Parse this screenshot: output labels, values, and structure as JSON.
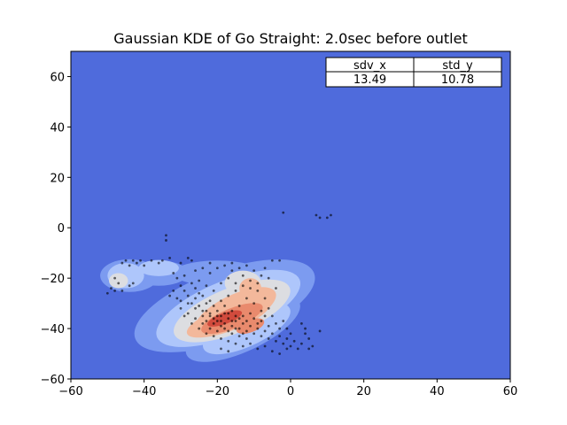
{
  "chart_data": {
    "type": "heatmap",
    "title": "Gaussian KDE of Go Straight: 2.0sec before outlet",
    "xlabel": "",
    "ylabel": "",
    "xlim": [
      -60,
      60
    ],
    "ylim": [
      -60,
      70
    ],
    "x_ticks": [
      -60,
      -40,
      -20,
      0,
      20,
      40,
      60
    ],
    "y_ticks": [
      -60,
      -40,
      -20,
      0,
      20,
      40,
      60
    ],
    "x_tick_labels": [
      "−60",
      "−40",
      "−20",
      "0",
      "20",
      "40",
      "60"
    ],
    "y_tick_labels": [
      "−60",
      "−40",
      "−20",
      "0",
      "20",
      "40",
      "60"
    ],
    "colormap": "coolwarm",
    "background_color": "#4f6bdc",
    "density_levels": [
      {
        "level": 1,
        "color": "#7c9bf0",
        "blobs": [
          {
            "cx": -18,
            "cy": -31,
            "rx": 26,
            "ry": 14,
            "rot": -20
          },
          {
            "cx": -44,
            "cy": -19,
            "rx": 8,
            "ry": 6.5,
            "rot": 0
          },
          {
            "cx": -36,
            "cy": -18,
            "rx": 8,
            "ry": 5,
            "rot": 0
          },
          {
            "cx": -13,
            "cy": -40,
            "rx": 17,
            "ry": 9,
            "rot": -25
          },
          {
            "cx": -20,
            "cy": -18,
            "rx": 12,
            "ry": 5,
            "rot": 0
          },
          {
            "cx": -7,
            "cy": -18,
            "rx": 5,
            "ry": 5,
            "rot": 0
          }
        ]
      },
      {
        "level": 2,
        "color": "#aec6fb",
        "blobs": [
          {
            "cx": -17,
            "cy": -32,
            "rx": 21,
            "ry": 11,
            "rot": -22
          },
          {
            "cx": -45,
            "cy": -19,
            "rx": 5,
            "ry": 5,
            "rot": 0
          },
          {
            "cx": -36,
            "cy": -16,
            "rx": 5.5,
            "ry": 3.2,
            "rot": 0
          },
          {
            "cx": -12,
            "cy": -40,
            "rx": 13,
            "ry": 7,
            "rot": -25
          }
        ]
      },
      {
        "level": 3,
        "color": "#dcdde1",
        "blobs": [
          {
            "cx": -16,
            "cy": -33,
            "rx": 17,
            "ry": 9,
            "rot": -22
          },
          {
            "cx": -47,
            "cy": -21,
            "rx": 2.6,
            "ry": 3,
            "rot": 0
          },
          {
            "cx": -13,
            "cy": -22,
            "rx": 5,
            "ry": 5,
            "rot": 0
          }
        ]
      },
      {
        "level": 4,
        "color": "#f3b89b",
        "blobs": [
          {
            "cx": -15,
            "cy": -33,
            "rx": 12,
            "ry": 6.5,
            "rot": -25
          },
          {
            "cx": -17,
            "cy": -36,
            "rx": 12,
            "ry": 5,
            "rot": -20
          },
          {
            "cx": -11,
            "cy": -24,
            "rx": 3,
            "ry": 4,
            "rot": 0
          }
        ]
      },
      {
        "level": 5,
        "color": "#e98a6d",
        "blobs": [
          {
            "cx": -16,
            "cy": -36,
            "rx": 9,
            "ry": 4,
            "rot": -22
          },
          {
            "cx": -11,
            "cy": -39,
            "rx": 4,
            "ry": 2.5,
            "rot": -20
          }
        ]
      },
      {
        "level": 6,
        "color": "#d24b3d",
        "blobs": [
          {
            "cx": -18,
            "cy": -36,
            "rx": 5,
            "ry": 2.2,
            "rot": -20
          }
        ]
      }
    ],
    "points": [
      [
        -45,
        -13
      ],
      [
        -46,
        -14
      ],
      [
        -44,
        -15
      ],
      [
        -43,
        -13
      ],
      [
        -42,
        -14
      ],
      [
        -41,
        -13
      ],
      [
        -40,
        -15
      ],
      [
        -48,
        -20
      ],
      [
        -47,
        -22
      ],
      [
        -49,
        -24
      ],
      [
        -48,
        -25
      ],
      [
        -46,
        -25
      ],
      [
        -50,
        -26
      ],
      [
        -44,
        -23
      ],
      [
        -43,
        -22
      ],
      [
        -38,
        -13
      ],
      [
        -36,
        -14
      ],
      [
        -35,
        -13
      ],
      [
        -33,
        -12
      ],
      [
        -34,
        -3
      ],
      [
        -34,
        -5
      ],
      [
        -28,
        -12
      ],
      [
        -30,
        -14
      ],
      [
        -27,
        -13
      ],
      [
        -32,
        -18
      ],
      [
        -31,
        -20
      ],
      [
        -30,
        -23
      ],
      [
        -29,
        -25
      ],
      [
        -28,
        -27
      ],
      [
        -27,
        -30
      ],
      [
        -26,
        -28
      ],
      [
        -25,
        -31
      ],
      [
        -24,
        -33
      ],
      [
        -23,
        -30
      ],
      [
        -22,
        -35
      ],
      [
        -21,
        -36
      ],
      [
        -20,
        -37
      ],
      [
        -19,
        -35
      ],
      [
        -18,
        -38
      ],
      [
        -17,
        -36
      ],
      [
        -16,
        -39
      ],
      [
        -15,
        -37
      ],
      [
        -14,
        -40
      ],
      [
        -13,
        -38
      ],
      [
        -12,
        -41
      ],
      [
        -11,
        -39
      ],
      [
        -10,
        -42
      ],
      [
        -9,
        -40
      ],
      [
        -8,
        -43
      ],
      [
        -7,
        -41
      ],
      [
        -6,
        -44
      ],
      [
        -5,
        -42
      ],
      [
        -4,
        -45
      ],
      [
        -3,
        -43
      ],
      [
        -2,
        -46
      ],
      [
        -1,
        -44
      ],
      [
        0,
        -47
      ],
      [
        1,
        -45
      ],
      [
        2,
        -48
      ],
      [
        3,
        -46
      ],
      [
        4,
        -42
      ],
      [
        5,
        -44
      ],
      [
        -22,
        -40
      ],
      [
        -20,
        -41
      ],
      [
        -18,
        -40
      ],
      [
        -16,
        -42
      ],
      [
        -14,
        -43
      ],
      [
        -12,
        -44
      ],
      [
        -24,
        -38
      ],
      [
        -26,
        -36
      ],
      [
        -28,
        -34
      ],
      [
        -30,
        -32
      ],
      [
        -29,
        -35
      ],
      [
        -27,
        -38
      ],
      [
        -25,
        -40
      ],
      [
        -23,
        -42
      ],
      [
        -21,
        -43
      ],
      [
        -19,
        -44
      ],
      [
        -17,
        -45
      ],
      [
        -15,
        -46
      ],
      [
        -13,
        -47
      ],
      [
        -11,
        -46
      ],
      [
        -9,
        -48
      ],
      [
        -7,
        -47
      ],
      [
        -5,
        -49
      ],
      [
        -3,
        -50
      ],
      [
        -1,
        -48
      ],
      [
        -22,
        -18
      ],
      [
        -20,
        -16
      ],
      [
        -18,
        -15
      ],
      [
        -16,
        -17
      ],
      [
        -14,
        -16
      ],
      [
        -12,
        -15
      ],
      [
        -10,
        -17
      ],
      [
        -8,
        -19
      ],
      [
        -11,
        -21
      ],
      [
        -13,
        -23
      ],
      [
        -15,
        -25
      ],
      [
        -17,
        -27
      ],
      [
        -19,
        -29
      ],
      [
        -21,
        -31
      ],
      [
        -23,
        -33
      ],
      [
        -9,
        -25
      ],
      [
        -7,
        -28
      ],
      [
        -6,
        -32
      ],
      [
        -5,
        -35
      ],
      [
        -4,
        -38
      ],
      [
        -3,
        -40
      ],
      [
        -8,
        -33
      ],
      [
        -10,
        -30
      ],
      [
        -12,
        -28
      ],
      [
        -14,
        -31
      ],
      [
        -16,
        -33
      ],
      [
        -18,
        -31
      ],
      [
        -20,
        -33
      ],
      [
        -22,
        -29
      ],
      [
        -24,
        -27
      ],
      [
        -26,
        -24
      ],
      [
        -25,
        -21
      ],
      [
        -23,
        -23
      ],
      [
        -21,
        -25
      ],
      [
        -19,
        -22
      ],
      [
        -17,
        -20
      ],
      [
        -15,
        -22
      ],
      [
        -13,
        -19
      ],
      [
        -11,
        -24
      ],
      [
        -9,
        -22
      ],
      [
        -7,
        -16
      ],
      [
        -6,
        -20
      ],
      [
        -4,
        -24
      ],
      [
        -3,
        -13
      ],
      [
        -16,
        -14
      ],
      [
        -19,
        -37
      ],
      [
        -17,
        -34
      ],
      [
        -15,
        -35
      ],
      [
        -14,
        -36
      ],
      [
        -18,
        -34
      ],
      [
        -20,
        -35
      ],
      [
        -16,
        -37
      ],
      [
        -13,
        -35
      ],
      [
        -12,
        -37
      ],
      [
        -10,
        -36
      ],
      [
        -11,
        -34
      ],
      [
        -21,
        -38
      ],
      [
        -23,
        -37
      ],
      [
        -19,
        -39
      ],
      [
        -17,
        -41
      ],
      [
        -15,
        -40
      ],
      [
        -13,
        -42
      ],
      [
        -22,
        -34
      ],
      [
        -9,
        -38
      ],
      [
        -8,
        -37
      ],
      [
        -6,
        -39
      ],
      [
        -7,
        -35
      ],
      [
        -24,
        -35
      ],
      [
        -26,
        -32
      ],
      [
        -28,
        -30
      ],
      [
        -31,
        -28
      ],
      [
        -33,
        -27
      ],
      [
        -32,
        -25
      ],
      [
        -30,
        -29
      ],
      [
        -25,
        -26
      ],
      [
        -27,
        -22
      ],
      [
        -29,
        -19
      ],
      [
        -26,
        -17
      ],
      [
        -24,
        -16
      ],
      [
        -22,
        -14
      ],
      [
        3,
        -38
      ],
      [
        4,
        -40
      ],
      [
        5,
        -48
      ],
      [
        6,
        -47
      ],
      [
        -1,
        -40
      ],
      [
        0,
        -42
      ],
      [
        -2,
        -37
      ],
      [
        -17,
        -49
      ],
      [
        -19,
        -48
      ],
      [
        -2,
        6
      ],
      [
        7,
        5
      ],
      [
        8,
        4
      ],
      [
        10,
        4
      ],
      [
        11,
        5
      ],
      [
        8,
        -41
      ],
      [
        -5,
        -13
      ]
    ],
    "table": {
      "columns": [
        "sdv_x",
        "std_y"
      ],
      "rows": [
        [
          "13.49",
          "10.78"
        ]
      ]
    }
  }
}
